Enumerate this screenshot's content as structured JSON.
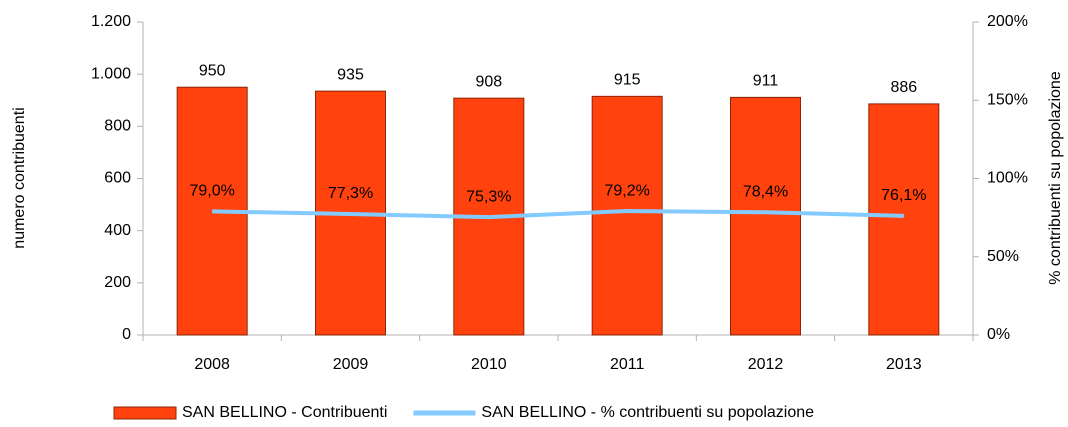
{
  "chart_data": {
    "type": "bar",
    "categories": [
      "2008",
      "2009",
      "2010",
      "2011",
      "2012",
      "2013"
    ],
    "series": [
      {
        "name": "SAN BELLINO - Contribuenti",
        "type": "bar",
        "color": "#ff420e",
        "values": [
          950,
          935,
          908,
          915,
          911,
          886
        ]
      },
      {
        "name": "SAN BELLINO - % contribuenti su popolazione",
        "type": "line",
        "axis": "y2",
        "color": "#83caff",
        "values": [
          79.0,
          77.3,
          75.3,
          79.2,
          78.4,
          76.1
        ],
        "value_labels": [
          "79,0%",
          "77,3%",
          "75,3%",
          "79,2%",
          "78,4%",
          "76,1%"
        ]
      }
    ],
    "ylabel": "numero contribuenti",
    "y2label": "% contribuenti su popolazione",
    "ylim": [
      0,
      1200
    ],
    "yticks": [
      0,
      {
        "value": 200,
        "label": "200"
      },
      {
        "value": 400,
        "label": "400"
      },
      {
        "value": 600,
        "label": "600"
      },
      {
        "value": 800,
        "label": "800"
      },
      {
        "value": 1000,
        "label": "1.000"
      },
      {
        "value": 1200,
        "label": "1.200"
      }
    ],
    "y2lim": [
      0,
      200
    ],
    "y2ticks": [
      {
        "value": 0,
        "label": "0%"
      },
      {
        "value": 50,
        "label": "50%"
      },
      {
        "value": 100,
        "label": "100%"
      },
      {
        "value": 150,
        "label": "150%"
      },
      {
        "value": 200,
        "label": "200%"
      }
    ],
    "legend": "bottom"
  }
}
